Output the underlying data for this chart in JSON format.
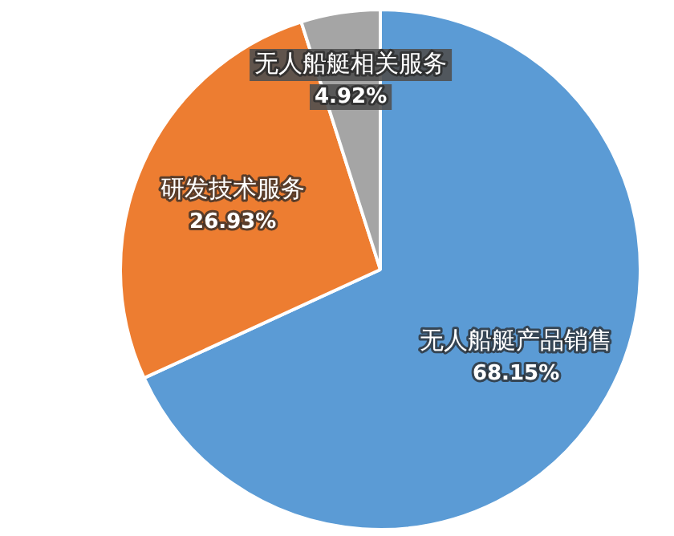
{
  "chart_data": {
    "type": "pie",
    "categories": [
      "无人船艇产品销售",
      "研发技术服务",
      "无人船艇相关服务"
    ],
    "values": [
      68.15,
      26.93,
      4.92
    ],
    "colors": [
      "#5b9bd5",
      "#ed7d31",
      "#a5a5a5"
    ],
    "value_labels": [
      "68.15%",
      "26.93%",
      "4.92%"
    ],
    "legend": false
  }
}
